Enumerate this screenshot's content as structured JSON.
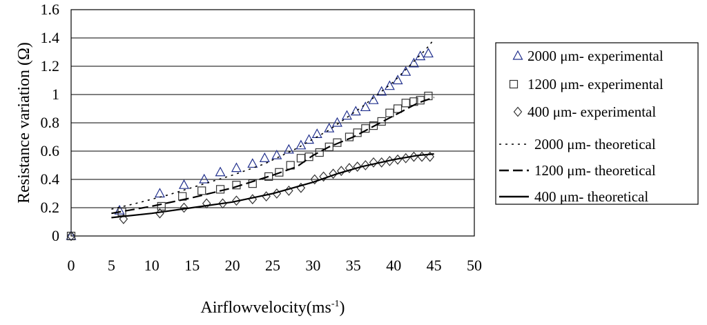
{
  "chart_data": {
    "type": "scatter",
    "title": "",
    "xlabel": "Airflowvelocity(ms",
    "xlabel_sup": "-1",
    "xlabel_close": ")",
    "ylabel": "Resistance variation (Ω)",
    "xlim": [
      0,
      50
    ],
    "ylim": [
      0,
      1.6
    ],
    "xticks": [
      "0",
      "5",
      "10",
      "15",
      "20",
      "25",
      "30",
      "35",
      "40",
      "45",
      "50"
    ],
    "yticks": [
      "0",
      "0.2",
      "0.4",
      "0.6",
      "0.8",
      "1",
      "1.2",
      "1.4",
      "1.6"
    ],
    "grid": "horizontal",
    "legend_position": "right",
    "series": [
      {
        "name": "2000 μm- experimental",
        "kind": "marker",
        "marker": "triangle",
        "color": "#1f2e8c",
        "points": [
          [
            0,
            0
          ],
          [
            6,
            0.18
          ],
          [
            11,
            0.3
          ],
          [
            14,
            0.36
          ],
          [
            16.5,
            0.4
          ],
          [
            18.5,
            0.45
          ],
          [
            20.5,
            0.48
          ],
          [
            22.5,
            0.51
          ],
          [
            24,
            0.55
          ],
          [
            25.5,
            0.57
          ],
          [
            27,
            0.61
          ],
          [
            28.5,
            0.64
          ],
          [
            29.5,
            0.68
          ],
          [
            30.5,
            0.72
          ],
          [
            32,
            0.76
          ],
          [
            33,
            0.8
          ],
          [
            34.2,
            0.85
          ],
          [
            35.3,
            0.88
          ],
          [
            36.5,
            0.91
          ],
          [
            37.5,
            0.96
          ],
          [
            38.5,
            1.02
          ],
          [
            39.5,
            1.06
          ],
          [
            40.5,
            1.1
          ],
          [
            41.5,
            1.16
          ],
          [
            42.5,
            1.22
          ],
          [
            43.3,
            1.27
          ],
          [
            44.3,
            1.29
          ]
        ]
      },
      {
        "name": "1200 μm- experimental",
        "kind": "marker",
        "marker": "square",
        "color": "#333333",
        "points": [
          [
            0,
            0
          ],
          [
            6.3,
            0.17
          ],
          [
            11.2,
            0.21
          ],
          [
            13.8,
            0.28
          ],
          [
            16.2,
            0.32
          ],
          [
            18.5,
            0.33
          ],
          [
            20.5,
            0.36
          ],
          [
            22.5,
            0.37
          ],
          [
            24.5,
            0.42
          ],
          [
            25.8,
            0.45
          ],
          [
            27.2,
            0.5
          ],
          [
            28.5,
            0.55
          ],
          [
            29.5,
            0.56
          ],
          [
            30.8,
            0.59
          ],
          [
            32,
            0.63
          ],
          [
            33,
            0.66
          ],
          [
            34.5,
            0.7
          ],
          [
            35.5,
            0.73
          ],
          [
            36.5,
            0.76
          ],
          [
            37.5,
            0.78
          ],
          [
            38.5,
            0.81
          ],
          [
            39.5,
            0.87
          ],
          [
            40.5,
            0.9
          ],
          [
            41.5,
            0.94
          ],
          [
            42.5,
            0.95
          ],
          [
            43.3,
            0.96
          ],
          [
            44.3,
            0.99
          ]
        ]
      },
      {
        "name": "400 μm- experimental",
        "kind": "marker",
        "marker": "diamond",
        "color": "#333333",
        "points": [
          [
            0,
            0
          ],
          [
            6.5,
            0.12
          ],
          [
            11,
            0.16
          ],
          [
            14,
            0.2
          ],
          [
            16.8,
            0.23
          ],
          [
            18.8,
            0.23
          ],
          [
            20.5,
            0.25
          ],
          [
            22.5,
            0.26
          ],
          [
            24.2,
            0.28
          ],
          [
            25.5,
            0.3
          ],
          [
            27,
            0.32
          ],
          [
            28.5,
            0.34
          ],
          [
            30.2,
            0.4
          ],
          [
            31.3,
            0.42
          ],
          [
            32.5,
            0.44
          ],
          [
            33.5,
            0.46
          ],
          [
            34.5,
            0.48
          ],
          [
            35.5,
            0.49
          ],
          [
            36.5,
            0.5
          ],
          [
            37.5,
            0.52
          ],
          [
            38.5,
            0.52
          ],
          [
            39.5,
            0.53
          ],
          [
            40.5,
            0.54
          ],
          [
            41.5,
            0.55
          ],
          [
            42.5,
            0.56
          ],
          [
            43.5,
            0.56
          ],
          [
            44.5,
            0.56
          ]
        ]
      },
      {
        "name": "2000 μm- theoretical",
        "kind": "line",
        "dash": "3,6",
        "color": "#000000",
        "points": [
          [
            5,
            0.19
          ],
          [
            8,
            0.23
          ],
          [
            12,
            0.29
          ],
          [
            16,
            0.36
          ],
          [
            20,
            0.43
          ],
          [
            24,
            0.51
          ],
          [
            28,
            0.62
          ],
          [
            32,
            0.75
          ],
          [
            36,
            0.91
          ],
          [
            40,
            1.09
          ],
          [
            44,
            1.32
          ],
          [
            45,
            1.39
          ]
        ]
      },
      {
        "name": "1200 μm- theoretical",
        "kind": "line",
        "dash": "14,6",
        "color": "#000000",
        "points": [
          [
            5,
            0.16
          ],
          [
            10,
            0.21
          ],
          [
            15,
            0.27
          ],
          [
            20,
            0.34
          ],
          [
            25,
            0.43
          ],
          [
            28,
            0.49
          ],
          [
            30,
            0.57
          ],
          [
            32,
            0.63
          ],
          [
            35,
            0.7
          ],
          [
            38,
            0.79
          ],
          [
            41,
            0.88
          ],
          [
            43,
            0.94
          ],
          [
            45,
            0.98
          ]
        ]
      },
      {
        "name": "400 μm- theoretical",
        "kind": "line",
        "dash": "",
        "color": "#000000",
        "points": [
          [
            5,
            0.13
          ],
          [
            10,
            0.16
          ],
          [
            15,
            0.2
          ],
          [
            20,
            0.24
          ],
          [
            25,
            0.3
          ],
          [
            30,
            0.38
          ],
          [
            33,
            0.44
          ],
          [
            36,
            0.49
          ],
          [
            40,
            0.54
          ],
          [
            43,
            0.57
          ],
          [
            45,
            0.58
          ]
        ]
      }
    ]
  }
}
